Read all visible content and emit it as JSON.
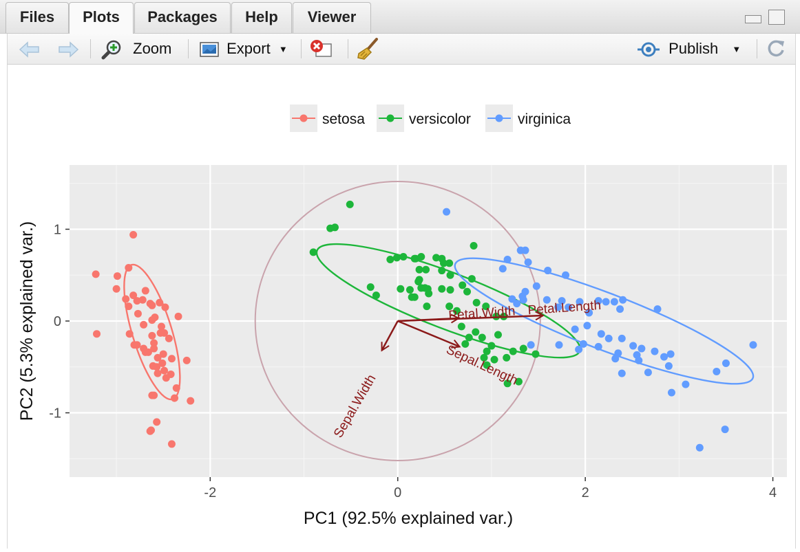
{
  "tabs": [
    {
      "label": "Files"
    },
    {
      "label": "Plots"
    },
    {
      "label": "Packages"
    },
    {
      "label": "Help"
    },
    {
      "label": "Viewer"
    }
  ],
  "toolbar": {
    "zoom_label": "Zoom",
    "export_label": "Export",
    "publish_label": "Publish"
  },
  "colors": {
    "setosa": "#F8766D",
    "versicolor": "#1DB63A",
    "virginica": "#619CFF",
    "arrow": "#8B1A1A",
    "circle": "#C9A3AC"
  },
  "chart_data": {
    "type": "scatter",
    "xlabel": "PC1 (92.5% explained var.)",
    "ylabel": "PC2 (5.3% explained var.)",
    "xlim": [
      -3.5,
      4.15
    ],
    "ylim": [
      -1.7,
      1.7
    ],
    "xticks": [
      -2,
      0,
      2,
      4
    ],
    "yticks": [
      -1,
      0,
      1
    ],
    "xtick_labels": [
      "-2",
      "0",
      "2",
      "4"
    ],
    "ytick_labels": [
      "-1",
      "0",
      "1"
    ],
    "grid": true,
    "legend_position": "top",
    "series": [
      {
        "name": "setosa",
        "color": "#F8766D",
        "points": [
          [
            -3.22,
            0.51
          ],
          [
            -3.21,
            -0.14
          ],
          [
            -2.82,
            0.94
          ],
          [
            -2.87,
            0.58
          ],
          [
            -2.99,
            0.49
          ],
          [
            -3.0,
            0.35
          ],
          [
            -2.9,
            0.24
          ],
          [
            -2.82,
            0.28
          ],
          [
            -2.78,
            0.22
          ],
          [
            -2.69,
            0.33
          ],
          [
            -2.72,
            0.23
          ],
          [
            -2.64,
            0.19
          ],
          [
            -2.54,
            0.2
          ],
          [
            -2.48,
            0.15
          ],
          [
            -2.62,
            0.17
          ],
          [
            -2.87,
            0.16
          ],
          [
            -2.77,
            0.08
          ],
          [
            -2.59,
            0.04
          ],
          [
            -2.34,
            0.05
          ],
          [
            -2.62,
            0.01
          ],
          [
            -2.71,
            -0.04
          ],
          [
            -2.52,
            -0.06
          ],
          [
            -2.53,
            -0.13
          ],
          [
            -2.49,
            -0.13
          ],
          [
            -2.86,
            -0.14
          ],
          [
            -2.62,
            -0.16
          ],
          [
            -2.44,
            -0.19
          ],
          [
            -2.6,
            -0.24
          ],
          [
            -2.78,
            -0.26
          ],
          [
            -2.81,
            -0.26
          ],
          [
            -2.71,
            -0.3
          ],
          [
            -2.66,
            -0.34
          ],
          [
            -2.69,
            -0.34
          ],
          [
            -2.6,
            -0.3
          ],
          [
            -2.5,
            -0.36
          ],
          [
            -2.56,
            -0.4
          ],
          [
            -2.41,
            -0.41
          ],
          [
            -2.25,
            -0.43
          ],
          [
            -2.51,
            -0.46
          ],
          [
            -2.57,
            -0.5
          ],
          [
            -2.61,
            -0.49
          ],
          [
            -2.56,
            -0.57
          ],
          [
            -2.49,
            -0.54
          ],
          [
            -2.42,
            -0.58
          ],
          [
            -2.47,
            -0.62
          ],
          [
            -2.36,
            -0.73
          ],
          [
            -2.62,
            -0.81
          ],
          [
            -2.6,
            -0.81
          ],
          [
            -2.38,
            -0.84
          ],
          [
            -2.21,
            -0.87
          ],
          [
            -2.57,
            -1.1
          ],
          [
            -2.63,
            -1.19
          ],
          [
            -2.64,
            -1.2
          ],
          [
            -2.41,
            -1.34
          ]
        ]
      },
      {
        "name": "versicolor",
        "color": "#1DB63A",
        "points": [
          [
            -0.51,
            1.27
          ],
          [
            -0.72,
            1.01
          ],
          [
            -0.67,
            1.02
          ],
          [
            -0.9,
            0.75
          ],
          [
            0.18,
            0.68
          ],
          [
            -0.08,
            0.67
          ],
          [
            -0.01,
            0.69
          ],
          [
            0.06,
            0.7
          ],
          [
            0.19,
            0.68
          ],
          [
            0.25,
            0.7
          ],
          [
            0.41,
            0.69
          ],
          [
            0.47,
            0.55
          ],
          [
            0.55,
            0.63
          ],
          [
            0.23,
            0.56
          ],
          [
            0.3,
            0.56
          ],
          [
            0.47,
            0.68
          ],
          [
            0.49,
            0.63
          ],
          [
            0.81,
            0.82
          ],
          [
            0.23,
            0.45
          ],
          [
            0.22,
            0.43
          ],
          [
            0.25,
            0.36
          ],
          [
            0.32,
            0.35
          ],
          [
            0.29,
            0.36
          ],
          [
            0.15,
            0.26
          ],
          [
            0.03,
            0.35
          ],
          [
            -0.29,
            0.37
          ],
          [
            -0.23,
            0.28
          ],
          [
            0.13,
            0.34
          ],
          [
            0.18,
            0.26
          ],
          [
            0.33,
            0.3
          ],
          [
            0.56,
            0.34
          ],
          [
            0.79,
            0.46
          ],
          [
            0.56,
            0.5
          ],
          [
            0.69,
            0.39
          ],
          [
            0.47,
            0.35
          ],
          [
            0.74,
            0.32
          ],
          [
            0.84,
            0.2
          ],
          [
            1.05,
            0.05
          ],
          [
            0.94,
            0.16
          ],
          [
            0.63,
            0.11
          ],
          [
            1.13,
            0.05
          ],
          [
            0.55,
            0.16
          ],
          [
            0.31,
            0.16
          ],
          [
            0.68,
            -0.06
          ],
          [
            0.83,
            -0.12
          ],
          [
            1.07,
            -0.15
          ],
          [
            0.9,
            -0.18
          ],
          [
            1.0,
            -0.27
          ],
          [
            0.76,
            -0.18
          ],
          [
            0.72,
            -0.25
          ],
          [
            0.92,
            -0.4
          ],
          [
            1.23,
            -0.33
          ],
          [
            1.34,
            -0.3
          ],
          [
            0.95,
            -0.33
          ],
          [
            1.03,
            -0.42
          ],
          [
            1.16,
            -0.4
          ],
          [
            0.95,
            -0.48
          ],
          [
            1.47,
            -0.36
          ],
          [
            1.29,
            -0.66
          ],
          [
            1.17,
            -0.68
          ]
        ]
      },
      {
        "name": "virginica",
        "color": "#619CFF",
        "points": [
          [
            0.52,
            1.19
          ],
          [
            1.31,
            0.77
          ],
          [
            1.36,
            0.77
          ],
          [
            1.17,
            0.67
          ],
          [
            1.39,
            0.64
          ],
          [
            1.12,
            0.57
          ],
          [
            1.6,
            0.55
          ],
          [
            1.79,
            0.5
          ],
          [
            1.48,
            0.38
          ],
          [
            1.36,
            0.32
          ],
          [
            1.33,
            0.27
          ],
          [
            1.34,
            0.23
          ],
          [
            1.22,
            0.24
          ],
          [
            1.27,
            0.19
          ],
          [
            1.59,
            0.23
          ],
          [
            1.75,
            0.22
          ],
          [
            1.94,
            0.21
          ],
          [
            2.14,
            0.22
          ],
          [
            2.22,
            0.21
          ],
          [
            2.31,
            0.21
          ],
          [
            1.71,
            0.15
          ],
          [
            1.82,
            0.15
          ],
          [
            2.04,
            0.09
          ],
          [
            2.37,
            0.13
          ],
          [
            2.4,
            0.23
          ],
          [
            2.77,
            0.13
          ],
          [
            2.02,
            -0.05
          ],
          [
            1.89,
            -0.09
          ],
          [
            2.17,
            -0.14
          ],
          [
            2.25,
            -0.19
          ],
          [
            2.39,
            -0.19
          ],
          [
            1.72,
            -0.26
          ],
          [
            1.93,
            -0.31
          ],
          [
            1.98,
            -0.25
          ],
          [
            2.14,
            -0.28
          ],
          [
            2.51,
            -0.27
          ],
          [
            2.6,
            -0.3
          ],
          [
            2.55,
            -0.37
          ],
          [
            2.74,
            -0.33
          ],
          [
            2.91,
            -0.36
          ],
          [
            2.84,
            -0.39
          ],
          [
            2.57,
            -0.43
          ],
          [
            2.89,
            -0.49
          ],
          [
            2.39,
            -0.57
          ],
          [
            1.42,
            -0.26
          ],
          [
            3.07,
            -0.69
          ],
          [
            2.92,
            -0.78
          ],
          [
            3.22,
            -1.38
          ],
          [
            3.4,
            -0.55
          ],
          [
            3.5,
            -0.46
          ],
          [
            3.79,
            -0.26
          ],
          [
            3.49,
            -1.18
          ],
          [
            2.35,
            -0.35
          ],
          [
            2.67,
            -0.56
          ],
          [
            2.32,
            -0.41
          ]
        ]
      }
    ],
    "ellipses": [
      {
        "series": "setosa",
        "cx": -2.62,
        "cy": -0.12,
        "rx": 0.75,
        "ry": 0.21,
        "angle": -73
      },
      {
        "series": "versicolor",
        "cx": 0.54,
        "cy": 0.22,
        "rx": 1.5,
        "ry": 0.3,
        "angle": -21
      },
      {
        "series": "virginica",
        "cx": 2.2,
        "cy": 0.0,
        "rx": 1.7,
        "ry": 0.3,
        "angle": -21
      }
    ],
    "correlation_circle": {
      "cx": 0.0,
      "cy": 0.0,
      "radius": 1.52
    },
    "loadings": [
      {
        "name": "Sepal.Length",
        "x": 0.66,
        "y": -0.28
      },
      {
        "name": "Sepal.Width",
        "x": -0.17,
        "y": -0.32
      },
      {
        "name": "Petal.Length",
        "x": 1.55,
        "y": 0.06
      },
      {
        "name": "Petal.Width",
        "x": 0.65,
        "y": 0.03
      }
    ]
  }
}
